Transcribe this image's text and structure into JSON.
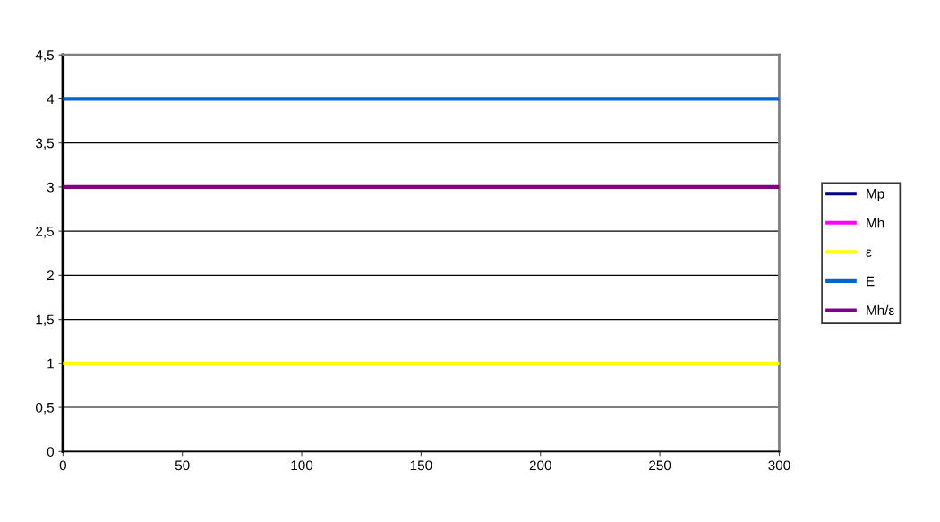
{
  "chart_data": {
    "type": "line",
    "x": [
      0,
      300
    ],
    "series": [
      {
        "name": "Mp",
        "color": "#000080",
        "values": [
          null,
          null
        ]
      },
      {
        "name": "Mh",
        "color": "#ff00ff",
        "values": [
          null,
          null
        ]
      },
      {
        "name": "ε",
        "color": "#ffff00",
        "values": [
          1,
          1
        ]
      },
      {
        "name": "E",
        "color": "#0066cc",
        "values": [
          4,
          4
        ]
      },
      {
        "name": "Mh/ε",
        "color": "#800080",
        "values": [
          3,
          3
        ]
      }
    ],
    "xlim": [
      0,
      300
    ],
    "xticks": [
      0,
      50,
      100,
      150,
      200,
      250,
      300
    ],
    "ylim": [
      0,
      4.5
    ],
    "yticks": [
      {
        "value": 0,
        "label": "0"
      },
      {
        "value": 0.5,
        "label": "0,5"
      },
      {
        "value": 1,
        "label": "1"
      },
      {
        "value": 1.5,
        "label": "1,5"
      },
      {
        "value": 2,
        "label": "2"
      },
      {
        "value": 2.5,
        "label": "2,5"
      },
      {
        "value": 3,
        "label": "3"
      },
      {
        "value": 3.5,
        "label": "3,5"
      },
      {
        "value": 4,
        "label": "4"
      },
      {
        "value": 4.5,
        "label": "4,5"
      }
    ],
    "grid": "y",
    "legend": "right",
    "marker": "none",
    "line_style": "solid"
  }
}
